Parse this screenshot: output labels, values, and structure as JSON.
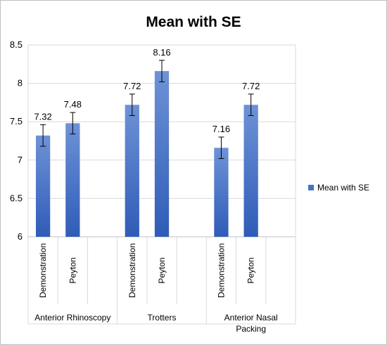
{
  "chart_data": {
    "type": "bar",
    "title": "Mean with SE",
    "xlabel": "",
    "ylabel": "",
    "ylim": [
      6,
      8.5
    ],
    "yticks": [
      "6",
      "6.5",
      "7",
      "7.5",
      "8",
      "8.5"
    ],
    "grid": true,
    "legend": {
      "position": "right",
      "entries": [
        "Mean with SE"
      ]
    },
    "groups": [
      {
        "label": "Anterior Rhinoscopy",
        "categories": [
          "Demonstration",
          "Peyton"
        ]
      },
      {
        "label": "Trotters",
        "categories": [
          "Demonstration",
          "Peyton"
        ]
      },
      {
        "label_lines": [
          "Anterior Nasal",
          "Packing"
        ],
        "categories": [
          "Demonstration",
          "Peyton"
        ]
      }
    ],
    "series": [
      {
        "name": "Mean with SE",
        "color": "#4472c4",
        "values": [
          7.32,
          7.48,
          7.72,
          8.16,
          7.16,
          7.72
        ],
        "value_labels": [
          "7.32",
          "7.48",
          "7.72",
          "8.16",
          "7.16",
          "7.72"
        ],
        "error": [
          0.14,
          0.14,
          0.14,
          0.14,
          0.14,
          0.14
        ]
      }
    ]
  }
}
